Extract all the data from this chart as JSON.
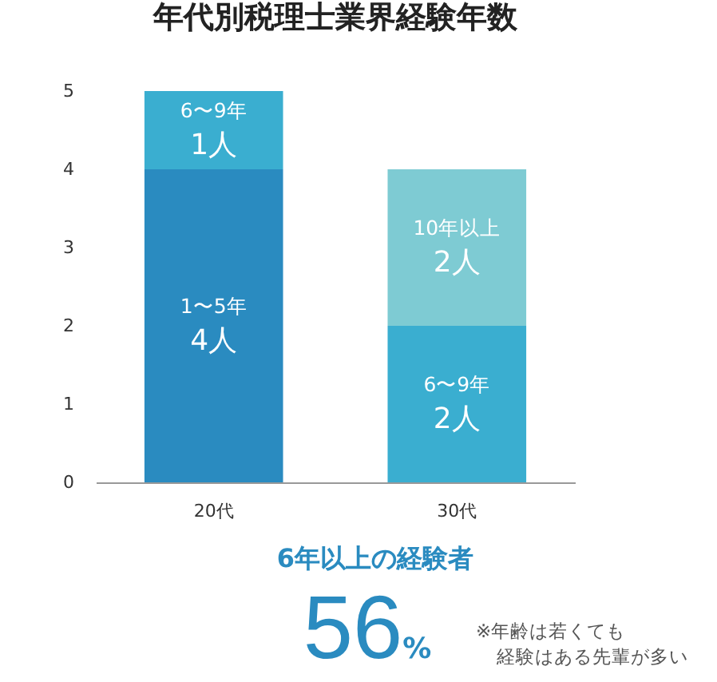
{
  "chart_data": {
    "type": "bar",
    "title": "年代別税理士業界経験年数",
    "stacked": true,
    "categories": [
      "20代",
      "30代"
    ],
    "series": [
      {
        "name": "1〜5年",
        "color": "#2a8bc0",
        "values": [
          4,
          null
        ],
        "value_labels": [
          "4人",
          null
        ]
      },
      {
        "name": "6〜9年",
        "color": "#3aaed0",
        "values": [
          1,
          2
        ],
        "value_labels": [
          "1人",
          "2人"
        ]
      },
      {
        "name": "10年以上",
        "color": "#7ecbd3",
        "values": [
          null,
          2
        ],
        "value_labels": [
          null,
          "2人"
        ]
      }
    ],
    "ylim": [
      0,
      5
    ],
    "yticks": [
      0,
      1,
      2,
      3,
      4,
      5
    ],
    "grid": false,
    "legend": false,
    "annotations": [
      "6年以上の経験者",
      "56%",
      "※年齢は若くても",
      "経験はある先輩が多い"
    ]
  }
}
